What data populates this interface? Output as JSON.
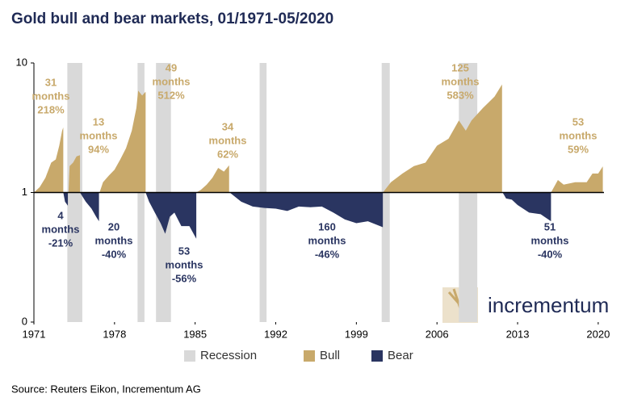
{
  "chart_data": {
    "type": "area",
    "title": "Gold bull and bear markets, 01/1971-05/2020",
    "source": "Source: Reuters Eikon, Incrementum AG",
    "brand": "incrementum",
    "log_scale": true,
    "xlim": [
      1971,
      2020.5
    ],
    "xticks": [
      1971,
      1978,
      1985,
      1992,
      1999,
      2006,
      2013,
      2020
    ],
    "ylim": [
      0.1,
      10
    ],
    "yticks": [
      {
        "value": 0.1,
        "label": "0"
      },
      1,
      10
    ],
    "recession_name": "Recession",
    "recession_color": "#d9d9d9",
    "recessions": [
      [
        1973.9,
        1975.2
      ],
      [
        1980.0,
        1980.6
      ],
      [
        1981.6,
        1982.9
      ],
      [
        1990.6,
        1991.2
      ],
      [
        2001.2,
        2001.9
      ],
      [
        2007.9,
        2009.5
      ]
    ],
    "series": [
      {
        "name": "Bull",
        "color": "#c8a96b",
        "x": [
          1971.0,
          1971.5,
          1972.0,
          1972.5,
          1972.9,
          1973.2,
          1973.45,
          1973.55,
          null,
          1974.0,
          1974.1,
          1974.4,
          1974.7,
          1975.0,
          null,
          1976.7,
          1977.0,
          1977.5,
          1978.0,
          1978.5,
          1979.0,
          1979.5,
          1979.9,
          1980.05,
          1980.4,
          1980.7,
          null,
          1985.1,
          1985.5,
          1986.0,
          1986.5,
          1987.0,
          1987.5,
          1987.95,
          null,
          2001.3,
          2002.0,
          2003.0,
          2004.0,
          2005.0,
          2006.0,
          2007.0,
          2007.9,
          2008.5,
          2009.0,
          2010.0,
          2011.0,
          2011.65,
          null,
          2015.9,
          2016.5,
          2017.0,
          2018.0,
          2019.0,
          2019.5,
          2020.0,
          2020.4
        ],
        "values": [
          1,
          1.1,
          1.3,
          1.7,
          1.8,
          2.3,
          3.0,
          3.18,
          null,
          1,
          1.6,
          1.7,
          1.9,
          1.94,
          null,
          1,
          1.2,
          1.35,
          1.5,
          1.8,
          2.2,
          3.0,
          4.5,
          6.12,
          5.6,
          6.0,
          null,
          1,
          1.05,
          1.15,
          1.3,
          1.55,
          1.45,
          1.62,
          null,
          1,
          1.2,
          1.4,
          1.6,
          1.7,
          2.3,
          2.6,
          3.6,
          3.0,
          3.6,
          4.5,
          5.5,
          6.83,
          null,
          1,
          1.25,
          1.15,
          1.2,
          1.2,
          1.4,
          1.4,
          1.59
        ]
      },
      {
        "name": "Bear",
        "color": "#2a3561",
        "x": [
          1973.55,
          1973.7,
          1973.95,
          null,
          1975.0,
          1975.5,
          1976.0,
          1976.4,
          1976.65,
          null,
          1980.7,
          1981.0,
          1981.5,
          1982.0,
          1982.4,
          1982.8,
          1983.2,
          1983.8,
          1984.5,
          1985.1,
          null,
          1988.0,
          1989.0,
          1990.0,
          1991.0,
          1992.0,
          1993.0,
          1994.0,
          1995.0,
          1996.0,
          1997.0,
          1998.0,
          1999.0,
          2000.0,
          2001.3,
          null,
          2011.7,
          2012.0,
          2012.5,
          2013.0,
          2014.0,
          2015.0,
          2015.9
        ],
        "values": [
          1,
          0.85,
          0.79,
          null,
          1,
          0.85,
          0.75,
          0.65,
          0.6,
          null,
          1,
          0.85,
          0.7,
          0.58,
          0.48,
          0.65,
          0.7,
          0.55,
          0.55,
          0.44,
          null,
          1,
          0.85,
          0.78,
          0.76,
          0.75,
          0.72,
          0.78,
          0.77,
          0.78,
          0.7,
          0.62,
          0.58,
          0.6,
          0.54,
          null,
          1,
          0.9,
          0.88,
          0.8,
          0.7,
          0.68,
          0.6
        ]
      }
    ],
    "annotations": [
      {
        "text": [
          "31",
          "months",
          "218%"
        ],
        "color": "#c8a96b"
      },
      {
        "text": [
          "13",
          "months",
          "94%"
        ],
        "color": "#c8a96b"
      },
      {
        "text": [
          "49",
          "months",
          "512%"
        ],
        "color": "#c8a96b"
      },
      {
        "text": [
          "34",
          "months",
          "62%"
        ],
        "color": "#c8a96b"
      },
      {
        "text": [
          "125",
          "months",
          "583%"
        ],
        "color": "#c8a96b"
      },
      {
        "text": [
          "53",
          "months",
          "59%"
        ],
        "color": "#c8a96b"
      },
      {
        "text": [
          "4",
          "months",
          "-21%"
        ],
        "color": "#2a3561"
      },
      {
        "text": [
          "20",
          "months",
          "-40%"
        ],
        "color": "#2a3561"
      },
      {
        "text": [
          "53",
          "months",
          "-56%"
        ],
        "color": "#2a3561"
      },
      {
        "text": [
          "160",
          "months",
          "-46%"
        ],
        "color": "#2a3561"
      },
      {
        "text": [
          "51",
          "months",
          "-40%"
        ],
        "color": "#2a3561"
      }
    ]
  }
}
